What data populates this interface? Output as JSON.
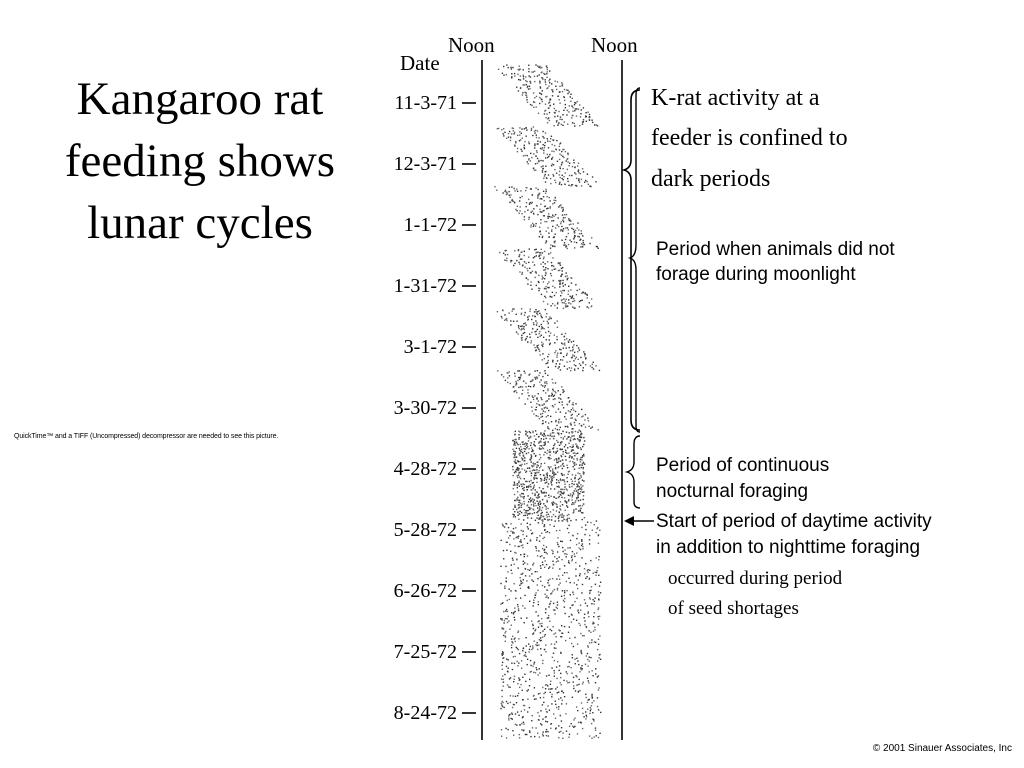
{
  "slide": {
    "title": "Kangaroo rat feeding shows lunar cycles",
    "placeholder_note": "QuickTime™ and a TIFF (Uncompressed) decompressor are needed to see this picture.",
    "copyright": "© 2001 Sinauer Associates, Inc"
  },
  "diagram": {
    "date_header": "Date",
    "noon_left": "Noon",
    "noon_right": "Noon",
    "dates": [
      "11-3-71",
      "12-3-71",
      "1-1-72",
      "1-31-72",
      "3-1-72",
      "3-30-72",
      "4-28-72",
      "5-28-72",
      "6-26-72",
      "7-25-72",
      "8-24-72"
    ],
    "callouts": {
      "main_line1": "K-rat activity at a",
      "main_line2": "feeder is confined to",
      "main_line3": "dark periods",
      "moonlight_line1": "Period when animals did not",
      "moonlight_line2": "forage during moonlight",
      "continuous_line1": "Period of continuous",
      "continuous_line2": "nocturnal foraging",
      "daytime_line1": "Start of period of daytime activity",
      "daytime_line2": "in addition to nighttime foraging",
      "shortage_line1": "occurred during period",
      "shortage_line2": "of seed shortages"
    }
  }
}
